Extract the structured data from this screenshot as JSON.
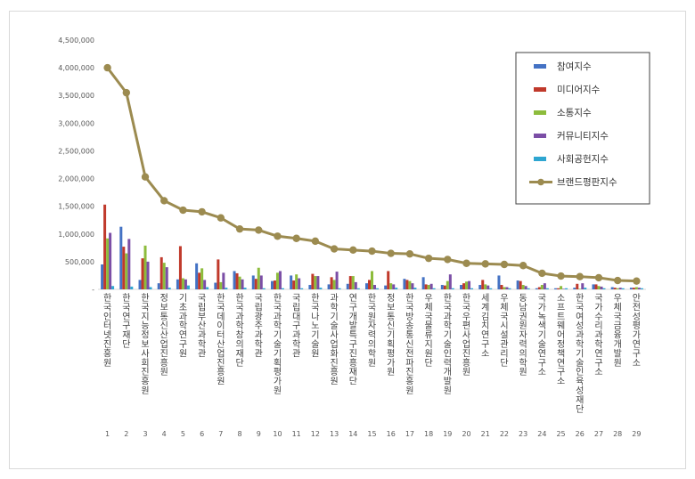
{
  "chart_data": {
    "type": "bar",
    "title": "",
    "xlabel": "",
    "ylabel": "",
    "ylim": [
      0,
      4500000
    ],
    "ytick_labels": [
      "-",
      "500,000",
      "1,000,000",
      "1,500,000",
      "2,000,000",
      "2,500,000",
      "3,000,000",
      "3,500,000",
      "4,000,000",
      "4,500,000"
    ],
    "ytick_values": [
      0,
      500000,
      1000000,
      1500000,
      2000000,
      2500000,
      3000000,
      3500000,
      4000000,
      4500000
    ],
    "grid": false,
    "legend_position": "top-right",
    "ranks": [
      "1",
      "2",
      "3",
      "4",
      "5",
      "6",
      "7",
      "8",
      "9",
      "10",
      "11",
      "12",
      "13",
      "14",
      "15",
      "16",
      "17",
      "18",
      "19",
      "20",
      "21",
      "22",
      "23",
      "24",
      "25",
      "26",
      "27",
      "28",
      "29"
    ],
    "categories": [
      "한국인터넷진흥원",
      "한국연구재단",
      "한국지능정보사회진흥원",
      "정보통신산업진흥원",
      "기초과학연구원",
      "국립부산과학관",
      "한국데이터산업진흥원",
      "한국과학창의재단",
      "국립광주과학관",
      "한국과학기술기획평가원",
      "국립대구과학관",
      "한국나노기술원",
      "과학기술사업화진흥원",
      "연구개발특구진흥재단",
      "한국원자력의학원",
      "정보통신기획평가원",
      "한국방송통신전파진흥원",
      "우체국물류지원단",
      "한국과학기술인력개발원",
      "한국우편사업진흥원",
      "세계김치연구소",
      "우체국시설관리단",
      "동남권원자력의학원",
      "국가녹색기술연구소",
      "소프트웨어정책연구소",
      "한국여성과학기술인육성재단",
      "국가수리과학연구소",
      "우체국금융개발원",
      "안전성평가연구소"
    ],
    "series": [
      {
        "name": "참여지수",
        "color": "#4472c4",
        "type": "bar",
        "values": [
          450000,
          1130000,
          170000,
          110000,
          180000,
          470000,
          120000,
          330000,
          250000,
          150000,
          250000,
          80000,
          90000,
          100000,
          110000,
          70000,
          190000,
          220000,
          80000,
          80000,
          80000,
          250000,
          160000,
          20000,
          20000,
          30000,
          90000,
          40000,
          30000
        ]
      },
      {
        "name": "미디어지수",
        "color": "#c0392b",
        "type": "bar",
        "values": [
          1530000,
          770000,
          560000,
          580000,
          780000,
          300000,
          540000,
          290000,
          190000,
          160000,
          160000,
          280000,
          220000,
          240000,
          170000,
          330000,
          170000,
          90000,
          70000,
          110000,
          170000,
          80000,
          150000,
          40000,
          20000,
          100000,
          90000,
          30000,
          30000
        ]
      },
      {
        "name": "소통지수",
        "color": "#8dbc3c",
        "type": "bar",
        "values": [
          920000,
          650000,
          790000,
          480000,
          200000,
          380000,
          130000,
          230000,
          390000,
          300000,
          270000,
          240000,
          170000,
          240000,
          330000,
          110000,
          150000,
          80000,
          150000,
          140000,
          90000,
          40000,
          80000,
          80000,
          60000,
          10000,
          60000,
          20000,
          40000
        ]
      },
      {
        "name": "커뮤니티지수",
        "color": "#7b4ea6",
        "type": "bar",
        "values": [
          1020000,
          910000,
          500000,
          400000,
          180000,
          170000,
          300000,
          180000,
          250000,
          330000,
          200000,
          240000,
          320000,
          130000,
          80000,
          90000,
          110000,
          100000,
          270000,
          150000,
          70000,
          40000,
          60000,
          110000,
          10000,
          110000,
          50000,
          30000,
          30000
        ]
      },
      {
        "name": "사회공헌지수",
        "color": "#2ea6d1",
        "type": "bar",
        "values": [
          60000,
          50000,
          40000,
          30000,
          70000,
          40000,
          30000,
          30000,
          20000,
          20000,
          20000,
          30000,
          20000,
          20000,
          20000,
          30000,
          30000,
          20000,
          20000,
          20000,
          20000,
          20000,
          20000,
          20000,
          20000,
          30000,
          20000,
          20000,
          20000
        ]
      },
      {
        "name": "브랜드평판지수",
        "color": "#9c8b50",
        "type": "line",
        "values": [
          4000000,
          3550000,
          2030000,
          1600000,
          1430000,
          1400000,
          1290000,
          1090000,
          1070000,
          960000,
          920000,
          870000,
          730000,
          710000,
          690000,
          650000,
          640000,
          560000,
          540000,
          470000,
          460000,
          450000,
          430000,
          290000,
          240000,
          230000,
          210000,
          160000,
          150000
        ]
      }
    ]
  }
}
